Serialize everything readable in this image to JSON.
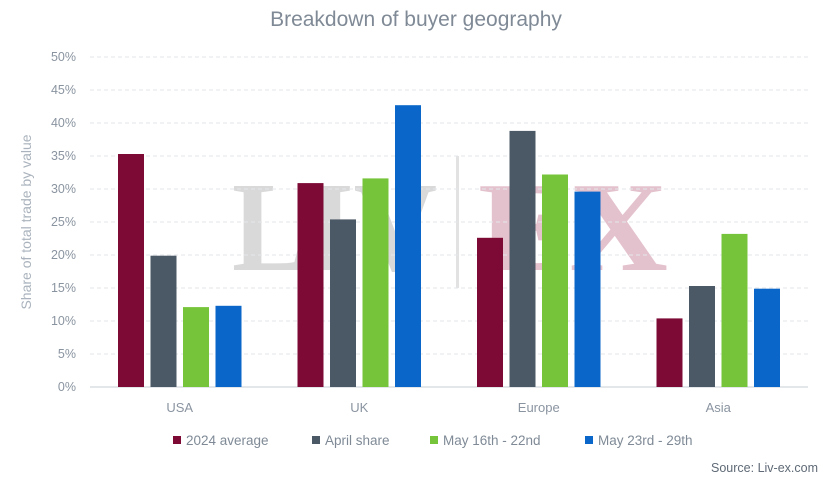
{
  "chart_data": {
    "type": "bar",
    "title": "Breakdown of buyer geography",
    "ylabel": "Share of total trade by value",
    "xlabel": "",
    "categories": [
      "USA",
      "UK",
      "Europe",
      "Asia"
    ],
    "ylim": [
      0,
      50
    ],
    "yticks": [
      "0%",
      "5%",
      "10%",
      "15%",
      "20%",
      "25%",
      "30%",
      "35%",
      "40%",
      "45%",
      "50%"
    ],
    "grid": true,
    "legend_position": "bottom",
    "series": [
      {
        "name": "2024 average",
        "color": "#7c0a35",
        "values": [
          35.3,
          30.9,
          22.6,
          10.4
        ]
      },
      {
        "name": "April share",
        "color": "#4b5865",
        "values": [
          19.9,
          25.4,
          38.8,
          15.3
        ]
      },
      {
        "name": "May 16th - 22nd",
        "color": "#76c43a",
        "values": [
          12.1,
          31.6,
          32.2,
          23.2
        ]
      },
      {
        "name": "May 23rd - 29th",
        "color": "#0a66c9",
        "values": [
          12.3,
          42.7,
          29.6,
          14.9
        ]
      }
    ]
  },
  "source": "Source: Liv-ex.com",
  "watermark": {
    "left": "LIV",
    "right": "EX"
  }
}
